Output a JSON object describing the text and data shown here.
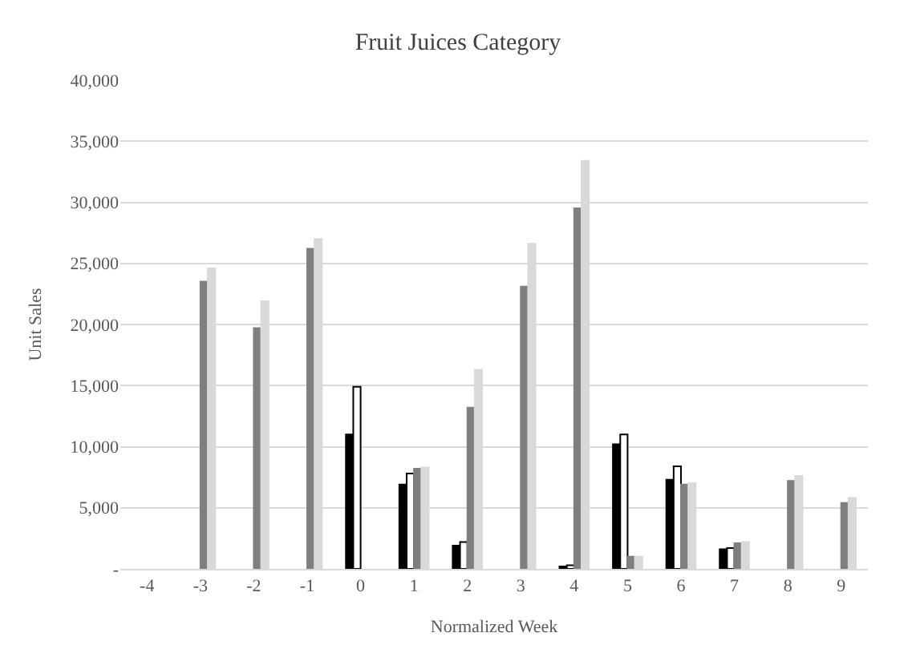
{
  "chart_data": {
    "type": "bar",
    "title": "Fruit Juices Category",
    "xlabel": "Normalized Week",
    "ylabel": "Unit Sales",
    "categories": [
      "-4",
      "-3",
      "-2",
      "-1",
      "0",
      "1",
      "2",
      "3",
      "4",
      "5",
      "6",
      "7",
      "8",
      "9"
    ],
    "series": [
      {
        "color": "#000000",
        "values": [
          null,
          null,
          null,
          null,
          11000,
          6900,
          1900,
          null,
          200,
          10200,
          7300,
          1600,
          null,
          null
        ]
      },
      {
        "color": "#ffffff",
        "values": [
          null,
          null,
          null,
          null,
          14900,
          7800,
          2200,
          null,
          300,
          11000,
          8400,
          1700,
          null,
          null
        ]
      },
      {
        "color": "#7f7f7f",
        "values": [
          null,
          23500,
          19700,
          26200,
          null,
          8200,
          13200,
          23100,
          29500,
          1000,
          6900,
          2100,
          7200,
          5400
        ]
      },
      {
        "color": "#d9d9d9",
        "values": [
          null,
          24600,
          21900,
          27000,
          null,
          8300,
          16300,
          26600,
          33400,
          1000,
          7000,
          2200,
          7600,
          5800
        ]
      }
    ],
    "ylim": [
      0,
      40000
    ],
    "yticks": [
      {
        "value": 0,
        "label": "-"
      },
      {
        "value": 5000,
        "label": "5,000"
      },
      {
        "value": 10000,
        "label": "10,000"
      },
      {
        "value": 15000,
        "label": "15,000"
      },
      {
        "value": 20000,
        "label": "20,000"
      },
      {
        "value": 25000,
        "label": "25,000"
      },
      {
        "value": 30000,
        "label": "30,000"
      },
      {
        "value": 35000,
        "label": "35,000"
      },
      {
        "value": 40000,
        "label": "40,000"
      }
    ],
    "grid": "y"
  }
}
